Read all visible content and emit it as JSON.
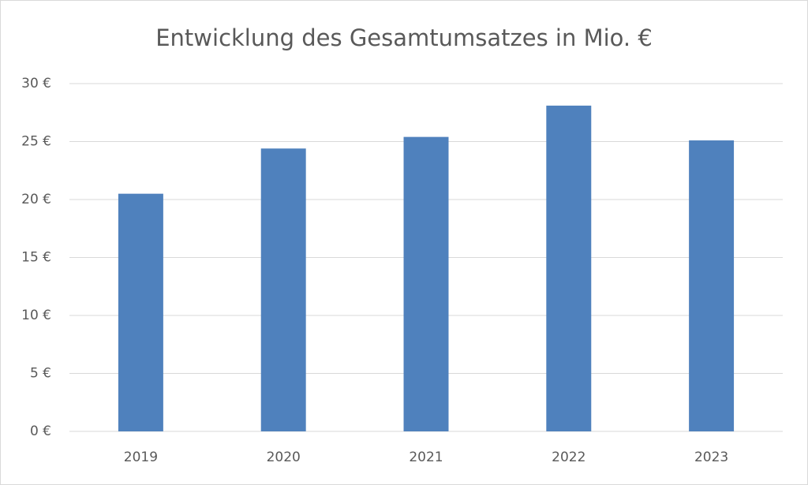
{
  "chart_data": {
    "type": "bar",
    "title": "Entwicklung des Gesamtumsatzes in Mio. €",
    "categories": [
      "2019",
      "2020",
      "2021",
      "2022",
      "2023"
    ],
    "values": [
      20.5,
      24.4,
      25.4,
      28.1,
      25.1
    ],
    "color": "#4f81bd",
    "ylim": [
      0,
      30
    ],
    "yticks": [
      {
        "value": 0,
        "label": "0 €"
      },
      {
        "value": 5,
        "label": "5 €"
      },
      {
        "value": 10,
        "label": "10 €"
      },
      {
        "value": 15,
        "label": "15 €"
      },
      {
        "value": 20,
        "label": "20 €"
      },
      {
        "value": 25,
        "label": "25 €"
      },
      {
        "value": 30,
        "label": "30 €"
      }
    ],
    "grid": true
  }
}
